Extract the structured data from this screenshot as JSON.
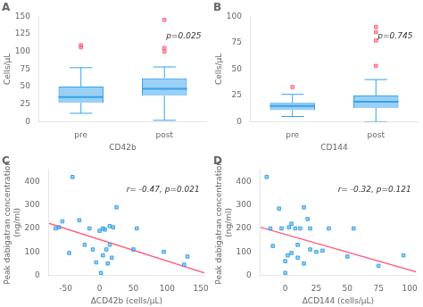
{
  "chart_data": [
    {
      "type": "box",
      "title": "A",
      "xlabel": "CD42b",
      "ylabel": "Cells/µL",
      "annotation": "p=0.025",
      "categories": [
        "pre",
        "post"
      ],
      "boxes": [
        {
          "median": 35,
          "q1": 27,
          "q3": 50,
          "whislo": 12,
          "whishi": 77,
          "fliers": [
            106,
            109
          ]
        },
        {
          "median": 47,
          "q1": 37,
          "q3": 62,
          "whislo": 2,
          "whishi": 78,
          "fliers": [
            100,
            105,
            145
          ]
        }
      ],
      "ylim": [
        0,
        150
      ],
      "yticks": [
        0,
        25,
        50,
        75,
        100,
        125,
        150
      ],
      "grid": false,
      "marker": "square"
    },
    {
      "type": "box",
      "title": "B",
      "xlabel": "CD144",
      "ylabel": "Cells/µL",
      "annotation": "p=0.745",
      "categories": [
        "pre",
        "post"
      ],
      "boxes": [
        {
          "median": 15,
          "q1": 11,
          "q3": 18,
          "whislo": 5,
          "whishi": 26,
          "fliers": [
            33
          ]
        },
        {
          "median": 19,
          "q1": 13,
          "q3": 25,
          "whislo": 0,
          "whishi": 40,
          "fliers": [
            53,
            77,
            85,
            90
          ]
        }
      ],
      "ylim": [
        0,
        100
      ],
      "yticks": [
        0,
        25,
        50,
        75,
        100
      ],
      "grid": false,
      "marker": "square"
    },
    {
      "type": "scatter",
      "title": "C",
      "xlabel": "ΔCD42b (cells/µL)",
      "ylabel": "Peak dabigatran concentration\n(ng/ml)",
      "annotation": "r= -0.47, p=0.021",
      "series": [
        {
          "type": "scatter",
          "marker": "square",
          "x": [
            -65,
            -60,
            -55,
            -45,
            -40,
            -30,
            -22,
            -15,
            -10,
            -5,
            0,
            2,
            5,
            5,
            8,
            10,
            12,
            15,
            15,
            18,
            20,
            25,
            50,
            55,
            95,
            125,
            130
          ],
          "values": [
            200,
            205,
            230,
            95,
            420,
            235,
            130,
            200,
            110,
            55,
            190,
            10,
            85,
            200,
            195,
            110,
            50,
            130,
            210,
            75,
            205,
            290,
            110,
            200,
            100,
            45,
            80
          ]
        },
        {
          "type": "line",
          "x": [
            -75,
            155
          ],
          "values": [
            222,
            10
          ]
        }
      ],
      "xlim": [
        -75,
        155
      ],
      "ylim": [
        0,
        450
      ],
      "xticks": [
        -50,
        0,
        50,
        100,
        150
      ],
      "yticks": [
        0,
        100,
        200,
        300,
        400
      ],
      "grid": false
    },
    {
      "type": "scatter",
      "title": "D",
      "xlabel": "ΔCD144 (cells/µL)",
      "ylabel": "Peak dabigatran concentration\n(ng/ml)",
      "annotation": "r= -0.32, p=0.121",
      "series": [
        {
          "type": "scatter",
          "marker": "square",
          "x": [
            -15,
            -12,
            -10,
            -5,
            -3,
            0,
            0,
            2,
            3,
            5,
            5,
            8,
            10,
            10,
            12,
            15,
            15,
            18,
            20,
            20,
            25,
            30,
            35,
            50,
            55,
            75,
            95
          ],
          "values": [
            420,
            200,
            125,
            285,
            200,
            60,
            10,
            85,
            205,
            220,
            95,
            200,
            75,
            130,
            200,
            50,
            290,
            240,
            200,
            110,
            100,
            105,
            200,
            80,
            200,
            40,
            85
          ]
        },
        {
          "type": "line",
          "x": [
            -20,
            105
          ],
          "values": [
            205,
            15
          ]
        }
      ],
      "xlim": [
        -20,
        105
      ],
      "ylim": [
        0,
        450
      ],
      "xticks": [
        0,
        25,
        50,
        75,
        100
      ],
      "yticks": [
        0,
        100,
        200,
        300,
        400
      ],
      "grid": false
    }
  ]
}
